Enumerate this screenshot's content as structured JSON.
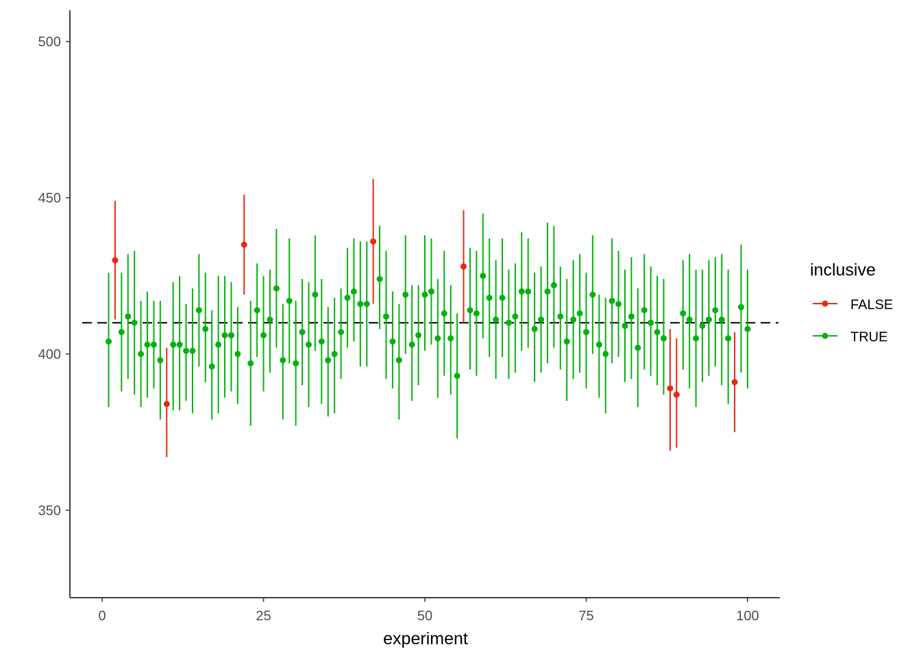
{
  "chart_data": {
    "type": "scatter",
    "subtype": "pointrange",
    "title": "",
    "xlabel": "experiment",
    "ylabel": "",
    "xlim": [
      -5,
      105
    ],
    "ylim": [
      322,
      510
    ],
    "x_ticks": [
      0,
      25,
      50,
      75,
      100
    ],
    "y_ticks": [
      350,
      400,
      450,
      500
    ],
    "reference_line": {
      "y": 410,
      "style": "dashed",
      "color": "#000000"
    },
    "grid": false,
    "legend": {
      "title": "inclusive",
      "position": "right",
      "entries": [
        {
          "label": "FALSE",
          "color": "#e41a1c"
        },
        {
          "label": "TRUE",
          "color": "#00ba38"
        }
      ]
    },
    "colors": {
      "FALSE": "#e7290f",
      "TRUE": "#05b10f"
    },
    "points": [
      {
        "x": 1,
        "y": 404,
        "lo": 383,
        "hi": 426,
        "inclusive": true
      },
      {
        "x": 2,
        "y": 430,
        "lo": 411,
        "hi": 449,
        "inclusive": false
      },
      {
        "x": 3,
        "y": 407,
        "lo": 388,
        "hi": 426,
        "inclusive": true
      },
      {
        "x": 4,
        "y": 412,
        "lo": 392,
        "hi": 432,
        "inclusive": true
      },
      {
        "x": 5,
        "y": 410,
        "lo": 387,
        "hi": 433,
        "inclusive": true
      },
      {
        "x": 6,
        "y": 400,
        "lo": 383,
        "hi": 417,
        "inclusive": true
      },
      {
        "x": 7,
        "y": 403,
        "lo": 386,
        "hi": 420,
        "inclusive": true
      },
      {
        "x": 8,
        "y": 403,
        "lo": 389,
        "hi": 417,
        "inclusive": true
      },
      {
        "x": 9,
        "y": 398,
        "lo": 379,
        "hi": 417,
        "inclusive": true
      },
      {
        "x": 10,
        "y": 384,
        "lo": 367,
        "hi": 402,
        "inclusive": false
      },
      {
        "x": 11,
        "y": 403,
        "lo": 382,
        "hi": 423,
        "inclusive": true
      },
      {
        "x": 12,
        "y": 403,
        "lo": 382,
        "hi": 425,
        "inclusive": true
      },
      {
        "x": 13,
        "y": 401,
        "lo": 385,
        "hi": 416,
        "inclusive": true
      },
      {
        "x": 14,
        "y": 401,
        "lo": 381,
        "hi": 421,
        "inclusive": true
      },
      {
        "x": 15,
        "y": 414,
        "lo": 396,
        "hi": 432,
        "inclusive": true
      },
      {
        "x": 16,
        "y": 408,
        "lo": 391,
        "hi": 426,
        "inclusive": true
      },
      {
        "x": 17,
        "y": 396,
        "lo": 379,
        "hi": 414,
        "inclusive": true
      },
      {
        "x": 18,
        "y": 403,
        "lo": 381,
        "hi": 425,
        "inclusive": true
      },
      {
        "x": 19,
        "y": 406,
        "lo": 386,
        "hi": 425,
        "inclusive": true
      },
      {
        "x": 20,
        "y": 406,
        "lo": 388,
        "hi": 423,
        "inclusive": true
      },
      {
        "x": 21,
        "y": 400,
        "lo": 384,
        "hi": 415,
        "inclusive": true
      },
      {
        "x": 22,
        "y": 435,
        "lo": 419,
        "hi": 451,
        "inclusive": false
      },
      {
        "x": 23,
        "y": 397,
        "lo": 377,
        "hi": 417,
        "inclusive": true
      },
      {
        "x": 24,
        "y": 414,
        "lo": 399,
        "hi": 429,
        "inclusive": true
      },
      {
        "x": 25,
        "y": 406,
        "lo": 388,
        "hi": 425,
        "inclusive": true
      },
      {
        "x": 26,
        "y": 411,
        "lo": 394,
        "hi": 427,
        "inclusive": true
      },
      {
        "x": 27,
        "y": 421,
        "lo": 402,
        "hi": 440,
        "inclusive": true
      },
      {
        "x": 28,
        "y": 398,
        "lo": 379,
        "hi": 416,
        "inclusive": true
      },
      {
        "x": 29,
        "y": 417,
        "lo": 397,
        "hi": 437,
        "inclusive": true
      },
      {
        "x": 30,
        "y": 397,
        "lo": 377,
        "hi": 417,
        "inclusive": true
      },
      {
        "x": 31,
        "y": 407,
        "lo": 390,
        "hi": 424,
        "inclusive": true
      },
      {
        "x": 32,
        "y": 403,
        "lo": 383,
        "hi": 423,
        "inclusive": true
      },
      {
        "x": 33,
        "y": 419,
        "lo": 401,
        "hi": 438,
        "inclusive": true
      },
      {
        "x": 34,
        "y": 404,
        "lo": 384,
        "hi": 424,
        "inclusive": true
      },
      {
        "x": 35,
        "y": 398,
        "lo": 380,
        "hi": 415,
        "inclusive": true
      },
      {
        "x": 36,
        "y": 400,
        "lo": 381,
        "hi": 418,
        "inclusive": true
      },
      {
        "x": 37,
        "y": 407,
        "lo": 392,
        "hi": 421,
        "inclusive": true
      },
      {
        "x": 38,
        "y": 418,
        "lo": 402,
        "hi": 434,
        "inclusive": true
      },
      {
        "x": 39,
        "y": 420,
        "lo": 404,
        "hi": 437,
        "inclusive": true
      },
      {
        "x": 40,
        "y": 416,
        "lo": 396,
        "hi": 436,
        "inclusive": true
      },
      {
        "x": 41,
        "y": 416,
        "lo": 396,
        "hi": 436,
        "inclusive": true
      },
      {
        "x": 42,
        "y": 436,
        "lo": 416,
        "hi": 456,
        "inclusive": false
      },
      {
        "x": 43,
        "y": 424,
        "lo": 408,
        "hi": 441,
        "inclusive": true
      },
      {
        "x": 44,
        "y": 412,
        "lo": 392,
        "hi": 433,
        "inclusive": true
      },
      {
        "x": 45,
        "y": 404,
        "lo": 389,
        "hi": 420,
        "inclusive": true
      },
      {
        "x": 46,
        "y": 398,
        "lo": 379,
        "hi": 416,
        "inclusive": true
      },
      {
        "x": 47,
        "y": 419,
        "lo": 400,
        "hi": 438,
        "inclusive": true
      },
      {
        "x": 48,
        "y": 403,
        "lo": 385,
        "hi": 422,
        "inclusive": true
      },
      {
        "x": 49,
        "y": 406,
        "lo": 390,
        "hi": 422,
        "inclusive": true
      },
      {
        "x": 50,
        "y": 419,
        "lo": 401,
        "hi": 438,
        "inclusive": true
      },
      {
        "x": 51,
        "y": 420,
        "lo": 403,
        "hi": 437,
        "inclusive": true
      },
      {
        "x": 52,
        "y": 405,
        "lo": 386,
        "hi": 424,
        "inclusive": true
      },
      {
        "x": 53,
        "y": 413,
        "lo": 393,
        "hi": 433,
        "inclusive": true
      },
      {
        "x": 54,
        "y": 405,
        "lo": 387,
        "hi": 422,
        "inclusive": true
      },
      {
        "x": 55,
        "y": 393,
        "lo": 373,
        "hi": 413,
        "inclusive": true
      },
      {
        "x": 56,
        "y": 428,
        "lo": 410,
        "hi": 446,
        "inclusive": false
      },
      {
        "x": 57,
        "y": 414,
        "lo": 395,
        "hi": 434,
        "inclusive": true
      },
      {
        "x": 58,
        "y": 413,
        "lo": 393,
        "hi": 433,
        "inclusive": true
      },
      {
        "x": 59,
        "y": 425,
        "lo": 405,
        "hi": 445,
        "inclusive": true
      },
      {
        "x": 60,
        "y": 418,
        "lo": 399,
        "hi": 437,
        "inclusive": true
      },
      {
        "x": 61,
        "y": 411,
        "lo": 392,
        "hi": 430,
        "inclusive": true
      },
      {
        "x": 62,
        "y": 418,
        "lo": 399,
        "hi": 437,
        "inclusive": true
      },
      {
        "x": 63,
        "y": 410,
        "lo": 392,
        "hi": 427,
        "inclusive": true
      },
      {
        "x": 64,
        "y": 412,
        "lo": 394,
        "hi": 429,
        "inclusive": true
      },
      {
        "x": 65,
        "y": 420,
        "lo": 401,
        "hi": 439,
        "inclusive": true
      },
      {
        "x": 66,
        "y": 420,
        "lo": 402,
        "hi": 437,
        "inclusive": true
      },
      {
        "x": 67,
        "y": 408,
        "lo": 391,
        "hi": 426,
        "inclusive": true
      },
      {
        "x": 68,
        "y": 411,
        "lo": 394,
        "hi": 428,
        "inclusive": true
      },
      {
        "x": 69,
        "y": 420,
        "lo": 397,
        "hi": 442,
        "inclusive": true
      },
      {
        "x": 70,
        "y": 422,
        "lo": 402,
        "hi": 441,
        "inclusive": true
      },
      {
        "x": 71,
        "y": 412,
        "lo": 395,
        "hi": 428,
        "inclusive": true
      },
      {
        "x": 72,
        "y": 404,
        "lo": 385,
        "hi": 424,
        "inclusive": true
      },
      {
        "x": 73,
        "y": 411,
        "lo": 392,
        "hi": 430,
        "inclusive": true
      },
      {
        "x": 74,
        "y": 413,
        "lo": 394,
        "hi": 432,
        "inclusive": true
      },
      {
        "x": 75,
        "y": 407,
        "lo": 389,
        "hi": 426,
        "inclusive": true
      },
      {
        "x": 76,
        "y": 419,
        "lo": 400,
        "hi": 438,
        "inclusive": true
      },
      {
        "x": 77,
        "y": 403,
        "lo": 386,
        "hi": 419,
        "inclusive": true
      },
      {
        "x": 78,
        "y": 400,
        "lo": 381,
        "hi": 418,
        "inclusive": true
      },
      {
        "x": 79,
        "y": 417,
        "lo": 397,
        "hi": 437,
        "inclusive": true
      },
      {
        "x": 80,
        "y": 416,
        "lo": 399,
        "hi": 433,
        "inclusive": true
      },
      {
        "x": 81,
        "y": 409,
        "lo": 391,
        "hi": 427,
        "inclusive": true
      },
      {
        "x": 82,
        "y": 412,
        "lo": 392,
        "hi": 431,
        "inclusive": true
      },
      {
        "x": 83,
        "y": 402,
        "lo": 383,
        "hi": 421,
        "inclusive": true
      },
      {
        "x": 84,
        "y": 414,
        "lo": 395,
        "hi": 432,
        "inclusive": true
      },
      {
        "x": 85,
        "y": 410,
        "lo": 393,
        "hi": 428,
        "inclusive": true
      },
      {
        "x": 86,
        "y": 407,
        "lo": 390,
        "hi": 425,
        "inclusive": true
      },
      {
        "x": 87,
        "y": 405,
        "lo": 387,
        "hi": 424,
        "inclusive": true
      },
      {
        "x": 88,
        "y": 389,
        "lo": 369,
        "hi": 408,
        "inclusive": false
      },
      {
        "x": 89,
        "y": 387,
        "lo": 370,
        "hi": 405,
        "inclusive": false
      },
      {
        "x": 90,
        "y": 413,
        "lo": 395,
        "hi": 430,
        "inclusive": true
      },
      {
        "x": 91,
        "y": 411,
        "lo": 389,
        "hi": 432,
        "inclusive": true
      },
      {
        "x": 92,
        "y": 405,
        "lo": 383,
        "hi": 427,
        "inclusive": true
      },
      {
        "x": 93,
        "y": 409,
        "lo": 391,
        "hi": 427,
        "inclusive": true
      },
      {
        "x": 94,
        "y": 411,
        "lo": 393,
        "hi": 430,
        "inclusive": true
      },
      {
        "x": 95,
        "y": 414,
        "lo": 396,
        "hi": 431,
        "inclusive": true
      },
      {
        "x": 96,
        "y": 411,
        "lo": 390,
        "hi": 432,
        "inclusive": true
      },
      {
        "x": 97,
        "y": 405,
        "lo": 384,
        "hi": 427,
        "inclusive": true
      },
      {
        "x": 98,
        "y": 391,
        "lo": 375,
        "hi": 407,
        "inclusive": false
      },
      {
        "x": 99,
        "y": 415,
        "lo": 394,
        "hi": 435,
        "inclusive": true
      },
      {
        "x": 100,
        "y": 408,
        "lo": 389,
        "hi": 427,
        "inclusive": true
      }
    ]
  }
}
